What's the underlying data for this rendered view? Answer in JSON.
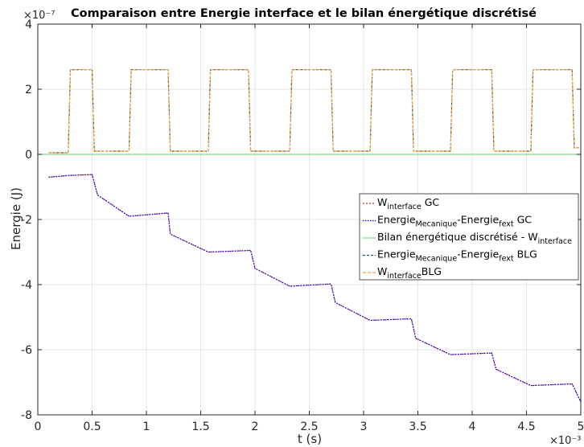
{
  "chart_data": {
    "type": "line",
    "title": "Comparaison entre Energie interface et le bilan énergétique discrétisé",
    "xlabel": "t (s)",
    "ylabel": "Energie (J)",
    "x_multiplier": "×10⁻³",
    "y_multiplier": "×10⁻⁷",
    "xlim": [
      0,
      5
    ],
    "ylim": [
      -8,
      4
    ],
    "xticks": [
      0,
      0.5,
      1,
      1.5,
      2,
      2.5,
      3,
      3.5,
      4,
      4.5,
      5
    ],
    "yticks": [
      -8,
      -6,
      -4,
      -2,
      0,
      2,
      4
    ],
    "xtick_labels": [
      "0",
      "0.5",
      "1",
      "1.5",
      "2",
      "2.5",
      "3",
      "3.5",
      "4",
      "4.5",
      "5"
    ],
    "ytick_labels": [
      "-8",
      "-6",
      "-4",
      "-2",
      "0",
      "2",
      "4"
    ],
    "grid": true,
    "legend_position": "center-right",
    "series": [
      {
        "name": "W_interface GC",
        "label_main": "W",
        "label_sub": "interface",
        "label_suffix": " GC",
        "color": "#d62728",
        "dash": "2,2",
        "x": [
          0.1,
          0.28,
          0.5,
          0.55,
          0.84,
          1.2,
          1.22,
          1.57,
          1.96,
          2.0,
          2.32,
          2.7,
          2.74,
          3.06,
          3.44,
          3.48,
          3.8,
          4.18,
          4.22,
          4.54,
          4.92,
          5.0
        ],
        "y": [
          -0.7,
          -0.65,
          -0.62,
          -1.25,
          -1.9,
          -1.8,
          -2.45,
          -3.0,
          -2.95,
          -3.5,
          -4.05,
          -3.98,
          -4.55,
          -5.1,
          -5.05,
          -5.65,
          -6.15,
          -6.1,
          -6.6,
          -7.1,
          -7.05,
          -7.6
        ]
      },
      {
        "name": "Energie_Mecanique-Energie_fext GC",
        "label_parts": [
          "Energie",
          "Mecanique",
          "-Energie",
          "fext",
          " GC"
        ],
        "color": "#0000ff",
        "dash": "1.5,1.5",
        "x": [
          0.1,
          0.28,
          0.5,
          0.55,
          0.84,
          1.2,
          1.22,
          1.57,
          1.96,
          2.0,
          2.32,
          2.7,
          2.74,
          3.06,
          3.44,
          3.48,
          3.8,
          4.18,
          4.22,
          4.54,
          4.92,
          5.0
        ],
        "y": [
          -0.7,
          -0.65,
          -0.62,
          -1.25,
          -1.9,
          -1.8,
          -2.45,
          -3.0,
          -2.95,
          -3.5,
          -4.05,
          -3.98,
          -4.55,
          -5.1,
          -5.05,
          -5.65,
          -6.15,
          -6.1,
          -6.6,
          -7.1,
          -7.05,
          -7.6
        ]
      },
      {
        "name": "Bilan énergétique discrétisé - W_interface",
        "label_main": "Bilan énergétique discrétisé - W",
        "label_sub": "interface",
        "label_suffix": "",
        "color": "#7ee07e",
        "dash": "",
        "x": [
          0,
          5
        ],
        "y": [
          0,
          0
        ]
      },
      {
        "name": "Energie_Mecanique-Energie_fext BLG",
        "label_parts": [
          "Energie",
          "Mecanique",
          "-Energie",
          "fext",
          " BLG"
        ],
        "color": "#1a5a6e",
        "dash": "3,2",
        "x": [
          0.1,
          0.28,
          0.3,
          0.5,
          0.52,
          0.84,
          0.86,
          1.2,
          1.22,
          1.57,
          1.59,
          1.94,
          1.96,
          2.32,
          2.34,
          2.7,
          2.72,
          3.06,
          3.08,
          3.44,
          3.46,
          3.8,
          3.82,
          4.18,
          4.2,
          4.54,
          4.56,
          4.92,
          4.94,
          5.0
        ],
        "y": [
          0.05,
          0.05,
          2.6,
          2.6,
          0.1,
          0.1,
          2.6,
          2.6,
          0.1,
          0.1,
          2.6,
          2.6,
          0.1,
          0.1,
          2.6,
          2.6,
          0.1,
          0.1,
          2.6,
          2.6,
          0.1,
          0.1,
          2.6,
          2.6,
          0.1,
          0.1,
          2.6,
          2.6,
          0.2,
          0.2
        ]
      },
      {
        "name": "W_interface BLG",
        "label_main": "W",
        "label_sub": "interface",
        "label_suffix": "BLG",
        "color": "#ff9f33",
        "dash": "4,2",
        "x": [
          0.1,
          0.28,
          0.3,
          0.5,
          0.52,
          0.84,
          0.86,
          1.2,
          1.22,
          1.57,
          1.59,
          1.94,
          1.96,
          2.32,
          2.34,
          2.7,
          2.72,
          3.06,
          3.08,
          3.44,
          3.46,
          3.8,
          3.82,
          4.18,
          4.2,
          4.54,
          4.56,
          4.92,
          4.94,
          5.0
        ],
        "y": [
          0.05,
          0.05,
          2.6,
          2.6,
          0.1,
          0.1,
          2.6,
          2.6,
          0.1,
          0.1,
          2.6,
          2.6,
          0.1,
          0.1,
          2.6,
          2.6,
          0.1,
          0.1,
          2.6,
          2.6,
          0.1,
          0.1,
          2.6,
          2.6,
          0.1,
          0.1,
          2.6,
          2.6,
          0.2,
          0.2
        ]
      }
    ]
  }
}
